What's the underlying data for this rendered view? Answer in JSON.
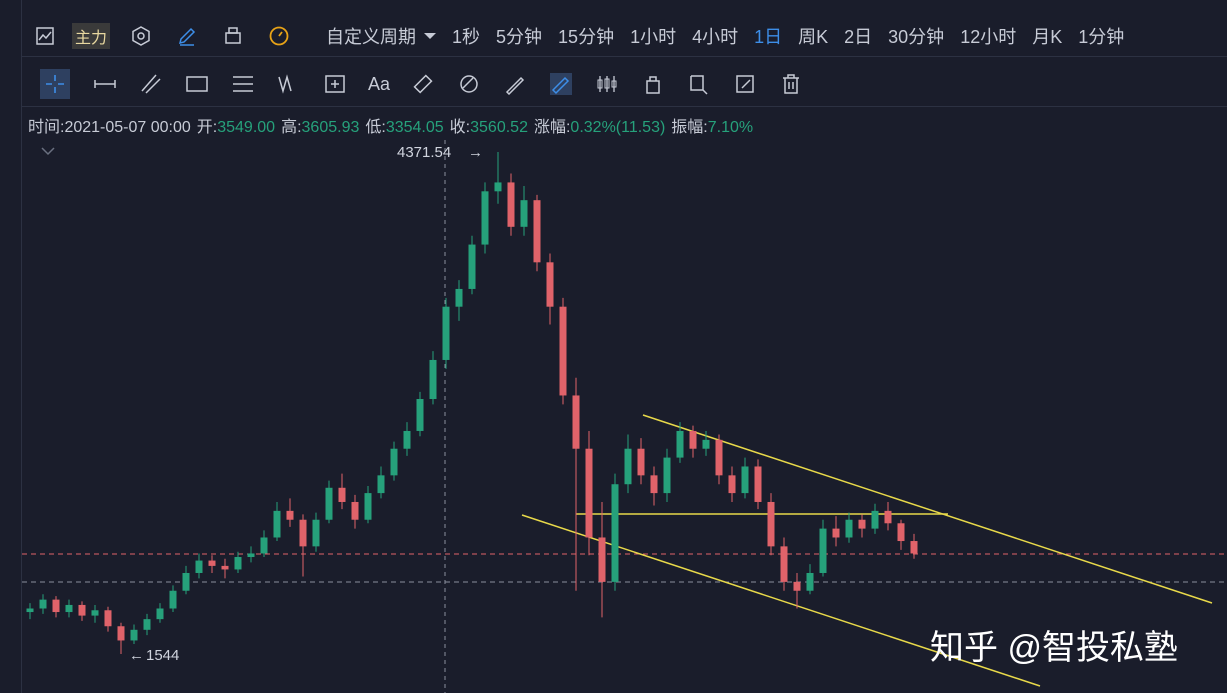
{
  "toolbar": {
    "main_label": "主力",
    "custom_period": "自定义周期",
    "periods": [
      "1秒",
      "5分钟",
      "15分钟",
      "1小时",
      "4小时",
      "1日",
      "周K",
      "2日",
      "30分钟",
      "12小时",
      "月K",
      "1分钟"
    ],
    "active_period": 5,
    "font_tool": "Aa"
  },
  "info_bar": {
    "time": "时间:2021-05-07 00:00",
    "fields": [
      {
        "label": "开:",
        "value": "3549.00"
      },
      {
        "label": "高:",
        "value": "3605.93"
      },
      {
        "label": "低:",
        "value": "3354.05"
      },
      {
        "label": "收:",
        "value": "3560.52"
      },
      {
        "label": "涨幅:",
        "value": "0.32%(11.53)"
      },
      {
        "label": "振幅:",
        "value": "7.10%"
      }
    ]
  },
  "chart_data": {
    "type": "candlestick",
    "ylim": [
      1324,
      4439
    ],
    "up_color": "#26a17b",
    "down_color": "#e0636a",
    "candles": [
      [
        1780,
        1830,
        1740,
        1800
      ],
      [
        1800,
        1880,
        1770,
        1850
      ],
      [
        1850,
        1870,
        1750,
        1780
      ],
      [
        1780,
        1850,
        1750,
        1820
      ],
      [
        1820,
        1840,
        1730,
        1760
      ],
      [
        1760,
        1820,
        1720,
        1790
      ],
      [
        1790,
        1810,
        1670,
        1700
      ],
      [
        1700,
        1720,
        1544,
        1620
      ],
      [
        1620,
        1710,
        1600,
        1680
      ],
      [
        1680,
        1770,
        1650,
        1740
      ],
      [
        1740,
        1830,
        1720,
        1800
      ],
      [
        1800,
        1930,
        1780,
        1900
      ],
      [
        1900,
        2040,
        1880,
        2000
      ],
      [
        2000,
        2110,
        1970,
        2070
      ],
      [
        2070,
        2100,
        2000,
        2040
      ],
      [
        2040,
        2080,
        1970,
        2020
      ],
      [
        2020,
        2120,
        2000,
        2090
      ],
      [
        2090,
        2150,
        2060,
        2110
      ],
      [
        2110,
        2240,
        2090,
        2200
      ],
      [
        2200,
        2400,
        2180,
        2350
      ],
      [
        2350,
        2420,
        2260,
        2300
      ],
      [
        2300,
        2330,
        1980,
        2150
      ],
      [
        2150,
        2340,
        2120,
        2300
      ],
      [
        2300,
        2520,
        2280,
        2480
      ],
      [
        2480,
        2560,
        2360,
        2400
      ],
      [
        2400,
        2440,
        2250,
        2300
      ],
      [
        2300,
        2490,
        2280,
        2450
      ],
      [
        2450,
        2600,
        2420,
        2550
      ],
      [
        2550,
        2740,
        2520,
        2700
      ],
      [
        2700,
        2850,
        2660,
        2800
      ],
      [
        2800,
        3020,
        2770,
        2980
      ],
      [
        2980,
        3250,
        2950,
        3200
      ],
      [
        3200,
        3550,
        3150,
        3500
      ],
      [
        3500,
        3650,
        3420,
        3600
      ],
      [
        3600,
        3900,
        3570,
        3850
      ],
      [
        3850,
        4200,
        3800,
        4150
      ],
      [
        4150,
        4371.54,
        4080,
        4200
      ],
      [
        4200,
        4250,
        3900,
        3950
      ],
      [
        3950,
        4180,
        3900,
        4100
      ],
      [
        4100,
        4130,
        3700,
        3750
      ],
      [
        3750,
        3800,
        3400,
        3500
      ],
      [
        3500,
        3550,
        2950,
        3000
      ],
      [
        3000,
        3100,
        1900,
        2700
      ],
      [
        2700,
        2800,
        2100,
        2200
      ],
      [
        2200,
        2400,
        1750,
        1950
      ],
      [
        1950,
        2560,
        1900,
        2500
      ],
      [
        2500,
        2780,
        2450,
        2700
      ],
      [
        2700,
        2760,
        2500,
        2550
      ],
      [
        2550,
        2600,
        2380,
        2450
      ],
      [
        2450,
        2700,
        2400,
        2650
      ],
      [
        2650,
        2850,
        2620,
        2800
      ],
      [
        2800,
        2830,
        2650,
        2700
      ],
      [
        2700,
        2800,
        2660,
        2750
      ],
      [
        2750,
        2780,
        2500,
        2550
      ],
      [
        2550,
        2600,
        2400,
        2450
      ],
      [
        2450,
        2650,
        2420,
        2600
      ],
      [
        2600,
        2640,
        2360,
        2400
      ],
      [
        2400,
        2450,
        2100,
        2150
      ],
      [
        2150,
        2200,
        1900,
        1950
      ],
      [
        1950,
        2000,
        1800,
        1900
      ],
      [
        1900,
        2050,
        1880,
        2000
      ],
      [
        2000,
        2300,
        1980,
        2250
      ],
      [
        2250,
        2320,
        2150,
        2200
      ],
      [
        2200,
        2340,
        2170,
        2300
      ],
      [
        2300,
        2330,
        2200,
        2250
      ],
      [
        2250,
        2390,
        2220,
        2350
      ],
      [
        2350,
        2400,
        2240,
        2280
      ],
      [
        2280,
        2300,
        2130,
        2180
      ],
      [
        2180,
        2220,
        2080,
        2110
      ]
    ]
  },
  "watermark": "知乎 @智投私塾"
}
